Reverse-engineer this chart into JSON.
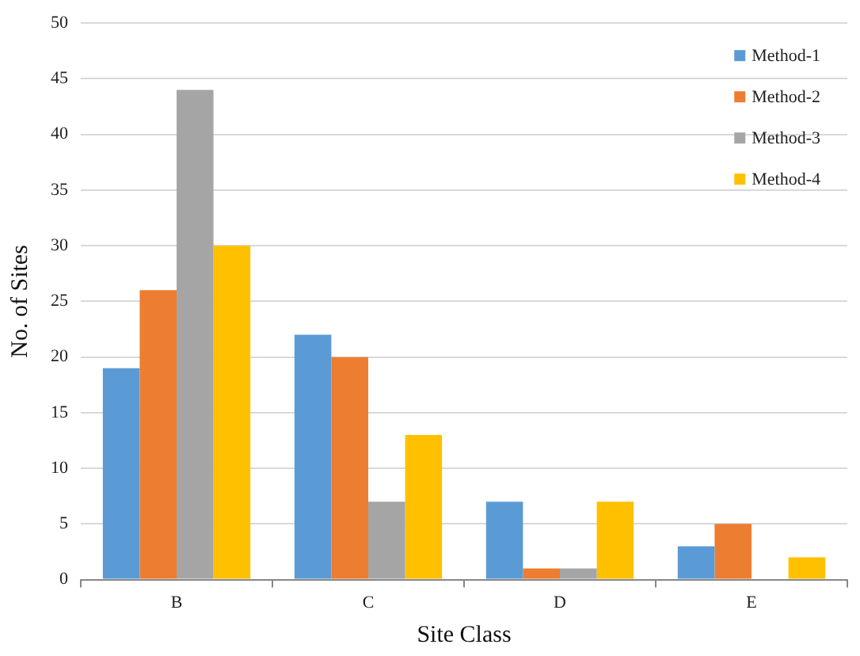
{
  "chart_data": {
    "type": "bar",
    "xlabel": "Site Class",
    "ylabel": "No. of Sites",
    "categories": [
      "B",
      "C",
      "D",
      "E"
    ],
    "series": [
      {
        "name": "Method-1",
        "color": "#5b9bd5",
        "values": [
          19,
          22,
          7,
          3
        ]
      },
      {
        "name": "Method-2",
        "color": "#ed7d31",
        "values": [
          26,
          20,
          1,
          5
        ]
      },
      {
        "name": "Method-3",
        "color": "#a5a5a5",
        "values": [
          44,
          7,
          1,
          0
        ]
      },
      {
        "name": "Method-4",
        "color": "#ffc000",
        "values": [
          30,
          13,
          7,
          2
        ]
      }
    ],
    "ylim": [
      0,
      50
    ],
    "yticks": [
      0,
      5,
      10,
      15,
      20,
      25,
      30,
      35,
      40,
      45,
      50
    ],
    "grid": "y",
    "legend": "top right"
  }
}
